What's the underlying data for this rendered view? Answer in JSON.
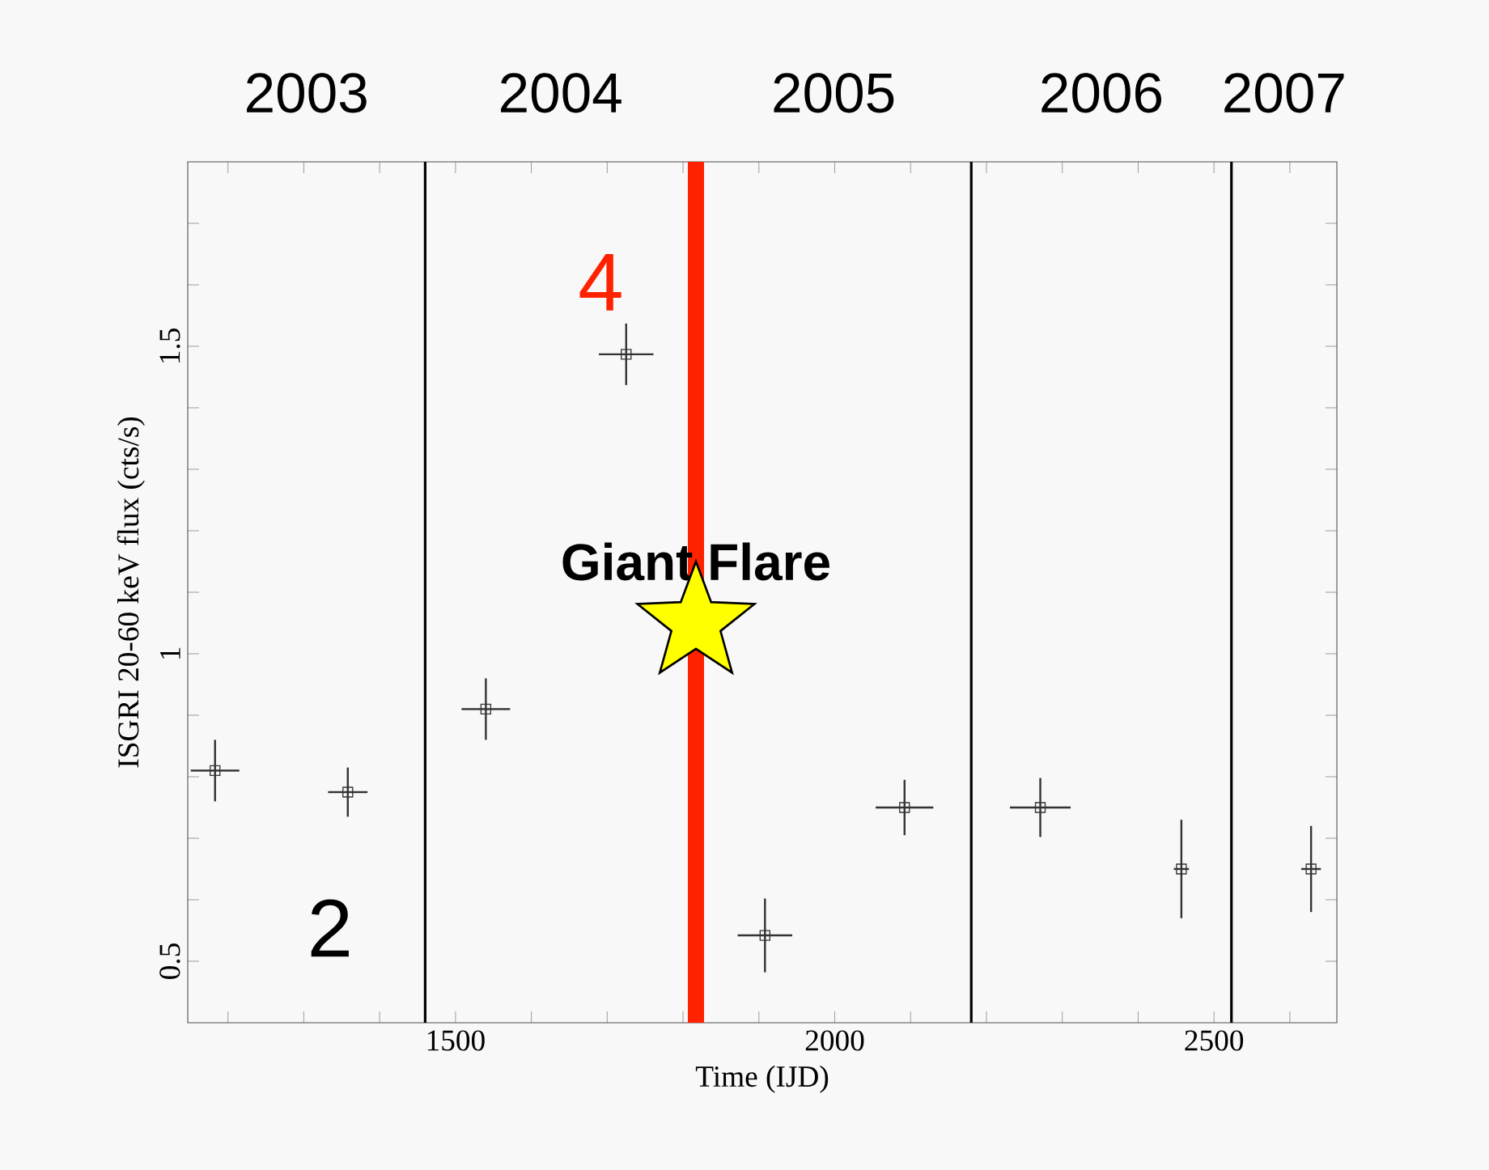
{
  "chart_data": {
    "type": "scatter",
    "xlabel": "Time (IJD)",
    "ylabel": "ISGRI 20-60 keV flux (cts/s)",
    "series": [
      {
        "color": "#333333",
        "marker": "square",
        "x": [
          1183,
          1358,
          1540,
          1725,
          1908,
          2092,
          2271,
          2457,
          2628
        ],
        "values": [
          0.81,
          0.775,
          0.91,
          1.487,
          0.542,
          0.75,
          0.75,
          0.65,
          0.65
        ],
        "errors": [
          0.05,
          0.04,
          0.05,
          0.05,
          0.06,
          0.045,
          0.048,
          0.08,
          0.07
        ],
        "xerrors": [
          32,
          26,
          32,
          36,
          36,
          38,
          40,
          10,
          13
        ]
      },
      {
        "color": "#ffff00",
        "marker": "star",
        "x": [
          1817
        ],
        "values": [
          1.05
        ]
      }
    ],
    "ref_lines": [
      {
        "axis": "x",
        "value": 1460,
        "color": "#000000"
      },
      {
        "axis": "x",
        "value": 1817,
        "color": "#ff2200"
      },
      {
        "axis": "x",
        "value": 2180,
        "color": "#000000"
      },
      {
        "axis": "x",
        "value": 2523,
        "color": "#000000"
      }
    ],
    "annotations": [
      "2003",
      "2004",
      "2005",
      "2006",
      "2007",
      "2",
      "4",
      {
        "text": "Giant Flare",
        "x": 1817,
        "y": 1.15
      }
    ],
    "xlim": [
      1147,
      2662
    ],
    "ylim": [
      0.4,
      1.8
    ],
    "xticks": [
      {
        "value": 1200,
        "label": null
      },
      {
        "value": 1300,
        "label": null
      },
      {
        "value": 1400,
        "label": null
      },
      1500,
      {
        "value": 1600,
        "label": null
      },
      {
        "value": 1700,
        "label": null
      },
      {
        "value": 1800,
        "label": null
      },
      {
        "value": 1900,
        "label": null
      },
      2000,
      {
        "value": 2100,
        "label": null
      },
      {
        "value": 2200,
        "label": null
      },
      {
        "value": 2300,
        "label": null
      },
      {
        "value": 2400,
        "label": null
      },
      2500,
      {
        "value": 2600,
        "label": null
      }
    ],
    "yticks": [
      0.5,
      {
        "value": 0.6,
        "label": null
      },
      {
        "value": 0.7,
        "label": null
      },
      {
        "value": 0.8,
        "label": null
      },
      {
        "value": 0.9,
        "label": null
      },
      1,
      {
        "value": 1.1,
        "label": null
      },
      {
        "value": 1.2,
        "label": null
      },
      {
        "value": 1.3,
        "label": null
      },
      {
        "value": 1.4,
        "label": null
      },
      1.5,
      {
        "value": 1.6,
        "label": null
      },
      {
        "value": 1.7,
        "label": null
      }
    ],
    "grid": false
  }
}
